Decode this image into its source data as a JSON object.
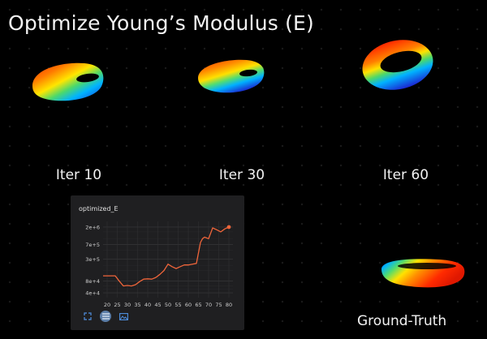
{
  "title": "Optimize Young’s Modulus (E)",
  "iterations": [
    {
      "label": "Iter 10"
    },
    {
      "label": "Iter 30"
    },
    {
      "label": "Iter 60"
    }
  ],
  "ground_truth_label": "Ground-Truth",
  "panel": {
    "title": "optimized_E",
    "toolbar": [
      {
        "icon": "expand-icon"
      },
      {
        "icon": "lines-icon"
      },
      {
        "icon": "image-icon"
      }
    ]
  },
  "chart_data": {
    "type": "line",
    "title": "optimized_E",
    "series_color": "#f0653a",
    "x_ticks": [
      "20",
      "25",
      "30",
      "35",
      "40",
      "45",
      "50",
      "55",
      "60",
      "65",
      "70",
      "75",
      "80"
    ],
    "y_ticks": [
      "4e+4",
      "8e+4",
      "3e+5",
      "7e+5",
      "2e+6"
    ],
    "y_scale": "log",
    "x": [
      18,
      20,
      22,
      24,
      26,
      28,
      30,
      32,
      34,
      36,
      38,
      40,
      42,
      44,
      46,
      48,
      50,
      52,
      54,
      56,
      58,
      60,
      62,
      64,
      66,
      67,
      68,
      70,
      72,
      74,
      76,
      78,
      80
    ],
    "y": [
      110000,
      110000,
      110000,
      110000,
      80000,
      60000,
      62000,
      60000,
      65000,
      78000,
      90000,
      92000,
      90000,
      100000,
      120000,
      150000,
      220000,
      190000,
      170000,
      190000,
      210000,
      210000,
      220000,
      230000,
      800000,
      1000000,
      1100000,
      1000000,
      1900000,
      1700000,
      1500000,
      1800000,
      2000000
    ]
  }
}
